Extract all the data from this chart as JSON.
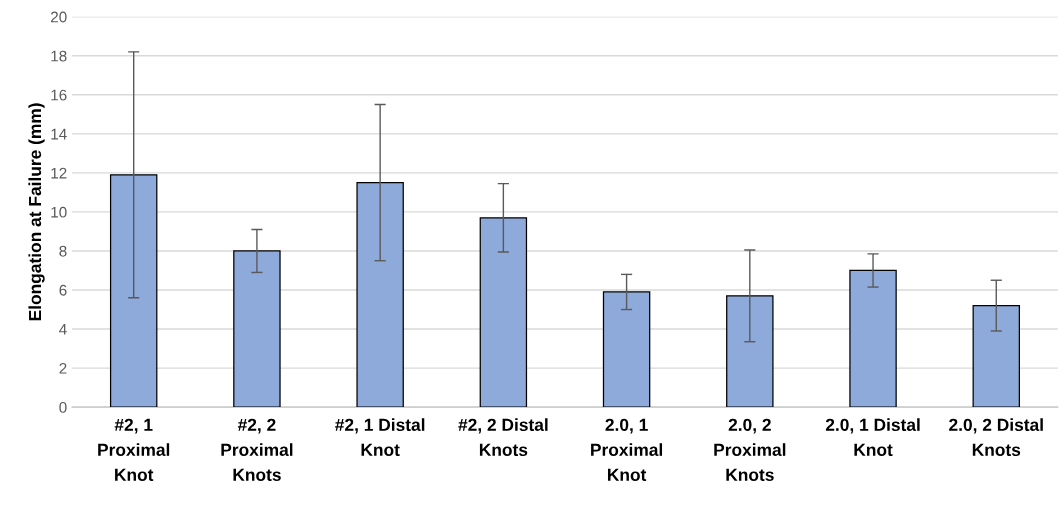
{
  "chart_data": {
    "type": "bar",
    "ylabel": "Elongation at Failure (mm)",
    "categories": [
      "#2, 1\nProximal\nKnot",
      "#2, 2\nProximal\nKnots",
      "#2, 1 Distal\nKnot",
      "#2, 2 Distal\nKnots",
      "2.0, 1\nProximal\nKnot",
      "2.0, 2\nProximal\nKnots",
      "2.0, 1 Distal\nKnot",
      "2.0, 2 Distal\nKnots"
    ],
    "values": [
      11.9,
      8.0,
      11.5,
      9.7,
      5.9,
      5.7,
      7.0,
      5.2
    ],
    "errors": [
      6.3,
      1.1,
      4.0,
      1.75,
      0.9,
      2.35,
      0.85,
      1.3
    ],
    "color": "#8eaadb",
    "ylim": [
      0,
      20
    ],
    "yticks": [
      0,
      2,
      4,
      6,
      8,
      10,
      12,
      14,
      16,
      18,
      20
    ],
    "grid": "y"
  }
}
